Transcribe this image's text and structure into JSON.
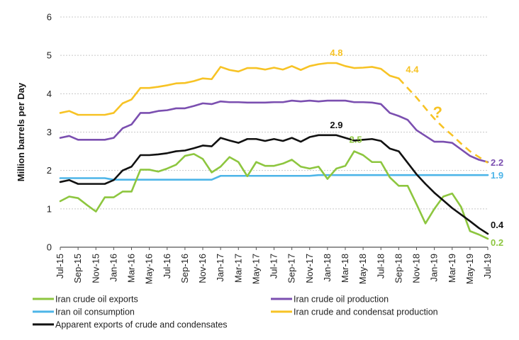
{
  "chart_data": {
    "type": "line",
    "ylabel": "Million barrels per Day",
    "xlabel": "",
    "ylim": [
      0,
      6
    ],
    "yticks": [
      0,
      1,
      2,
      3,
      4,
      5,
      6
    ],
    "ytick_labels": [
      "0",
      "1",
      "2",
      "3",
      "4",
      "5",
      "6"
    ],
    "grid": "horizontal",
    "legend_position": "bottom",
    "x": [
      "Jul-15",
      "Aug-15",
      "Sep-15",
      "Oct-15",
      "Nov-15",
      "Dec-15",
      "Jan-16",
      "Feb-16",
      "Mar-16",
      "Apr-16",
      "May-16",
      "Jun-16",
      "Jul-16",
      "Aug-16",
      "Sep-16",
      "Oct-16",
      "Nov-16",
      "Dec-16",
      "Jan-17",
      "Feb-17",
      "Mar-17",
      "Apr-17",
      "May-17",
      "Jun-17",
      "Jul-17",
      "Aug-17",
      "Sep-17",
      "Oct-17",
      "Nov-17",
      "Dec-17",
      "Jan-18",
      "Feb-18",
      "Mar-18",
      "Apr-18",
      "May-18",
      "Jun-18",
      "Jul-18",
      "Aug-18",
      "Sep-18",
      "Oct-18",
      "Nov-18",
      "Dec-18",
      "Jan-19",
      "Feb-19",
      "Mar-19",
      "Apr-19",
      "May-19",
      "Jun-19",
      "Jul-19"
    ],
    "xtick_labels": [
      "Jul-15",
      "Sep-15",
      "Nov-15",
      "Jan-16",
      "Mar-16",
      "May-16",
      "Jul-16",
      "Sep-16",
      "Nov-16",
      "Jan-17",
      "Mar-17",
      "May-17",
      "Jul-17",
      "Sep-17",
      "Nov-17",
      "Jan-18",
      "Mar-18",
      "May-18",
      "Jul-18",
      "Sep-18",
      "Nov-18",
      "Jan-19",
      "Mar-19",
      "May-19",
      "Jul-19"
    ],
    "series": [
      {
        "name": "Iran crude oil exports",
        "color": "#8DC63F",
        "values": [
          1.2,
          1.32,
          1.28,
          1.1,
          0.93,
          1.3,
          1.3,
          1.45,
          1.45,
          2.02,
          2.02,
          1.97,
          2.05,
          2.15,
          2.38,
          2.43,
          2.3,
          1.95,
          2.1,
          2.35,
          2.22,
          1.85,
          2.22,
          2.12,
          2.12,
          2.18,
          2.28,
          2.1,
          2.05,
          2.1,
          1.78,
          2.05,
          2.12,
          2.5,
          2.4,
          2.22,
          2.22,
          1.82,
          1.6,
          1.6,
          1.12,
          0.62,
          1.0,
          1.32,
          1.4,
          1.05,
          0.42,
          0.33,
          0.22
        ]
      },
      {
        "name": "Iran crude oil production",
        "color": "#7B4FB0",
        "values": [
          2.85,
          2.9,
          2.8,
          2.8,
          2.8,
          2.8,
          2.85,
          3.1,
          3.2,
          3.5,
          3.5,
          3.55,
          3.57,
          3.62,
          3.62,
          3.68,
          3.75,
          3.73,
          3.8,
          3.78,
          3.78,
          3.77,
          3.77,
          3.77,
          3.78,
          3.78,
          3.82,
          3.8,
          3.82,
          3.8,
          3.82,
          3.82,
          3.82,
          3.78,
          3.78,
          3.77,
          3.73,
          3.5,
          3.42,
          3.32,
          3.05,
          2.9,
          2.75,
          2.75,
          2.72,
          2.55,
          2.38,
          2.28,
          2.22
        ]
      },
      {
        "name": "Iran oil consumption",
        "color": "#4DB5E8",
        "values": [
          1.8,
          1.8,
          1.8,
          1.8,
          1.8,
          1.8,
          1.76,
          1.76,
          1.76,
          1.76,
          1.76,
          1.76,
          1.76,
          1.76,
          1.76,
          1.76,
          1.76,
          1.76,
          1.86,
          1.86,
          1.86,
          1.86,
          1.86,
          1.86,
          1.86,
          1.86,
          1.86,
          1.86,
          1.86,
          1.88,
          1.88,
          1.88,
          1.88,
          1.88,
          1.88,
          1.88,
          1.88,
          1.88,
          1.88,
          1.88,
          1.88,
          1.88,
          1.88,
          1.88,
          1.88,
          1.88,
          1.88,
          1.88,
          1.88
        ]
      },
      {
        "name": "Iran crude and condensat production",
        "color": "#F7C325",
        "values": [
          3.5,
          3.55,
          3.45,
          3.45,
          3.45,
          3.45,
          3.5,
          3.75,
          3.85,
          4.15,
          4.15,
          4.18,
          4.22,
          4.27,
          4.28,
          4.33,
          4.4,
          4.38,
          4.7,
          4.62,
          4.58,
          4.67,
          4.67,
          4.63,
          4.68,
          4.63,
          4.72,
          4.62,
          4.72,
          4.77,
          4.8,
          4.8,
          4.72,
          4.67,
          4.68,
          4.7,
          4.65,
          4.47,
          4.4,
          null,
          null,
          null,
          null,
          null,
          null,
          null,
          null,
          null,
          null
        ],
        "forecast": {
          "style": "dashed",
          "values": [
            null,
            null,
            null,
            null,
            null,
            null,
            null,
            null,
            null,
            null,
            null,
            null,
            null,
            null,
            null,
            null,
            null,
            null,
            null,
            null,
            null,
            null,
            null,
            null,
            null,
            null,
            null,
            null,
            null,
            null,
            null,
            null,
            null,
            null,
            null,
            null,
            null,
            null,
            4.4,
            4.15,
            3.9,
            3.62,
            3.35,
            3.12,
            2.92,
            2.7,
            2.5,
            2.35,
            2.2
          ]
        }
      },
      {
        "name": "Apparent exports of crude and condensates",
        "color": "#111111",
        "values": [
          1.7,
          1.75,
          1.65,
          1.65,
          1.65,
          1.65,
          1.75,
          2.0,
          2.1,
          2.4,
          2.4,
          2.42,
          2.45,
          2.5,
          2.52,
          2.58,
          2.65,
          2.63,
          2.85,
          2.78,
          2.72,
          2.82,
          2.82,
          2.77,
          2.82,
          2.77,
          2.85,
          2.75,
          2.87,
          2.92,
          2.92,
          2.92,
          2.85,
          2.78,
          2.8,
          2.82,
          2.77,
          2.57,
          2.5,
          2.2,
          1.9,
          1.65,
          1.42,
          1.22,
          1.02,
          0.85,
          0.68,
          0.5,
          0.35
        ]
      }
    ],
    "annotations": [
      {
        "text": "4.8",
        "series": 3,
        "index": 31
      },
      {
        "text": "4.4",
        "series": 3,
        "index": 38
      },
      {
        "text": "?",
        "series": 3,
        "index": 43
      },
      {
        "text": "2.9",
        "series": 4,
        "index": 31
      },
      {
        "text": "2.5",
        "series": 0,
        "index": 33
      },
      {
        "text": "2.2",
        "series": 1,
        "index": 48
      },
      {
        "text": "1.9",
        "series": 2,
        "index": 48
      },
      {
        "text": "0.4",
        "series": 4,
        "index": 48
      },
      {
        "text": "0.2",
        "series": 0,
        "index": 48
      }
    ]
  }
}
